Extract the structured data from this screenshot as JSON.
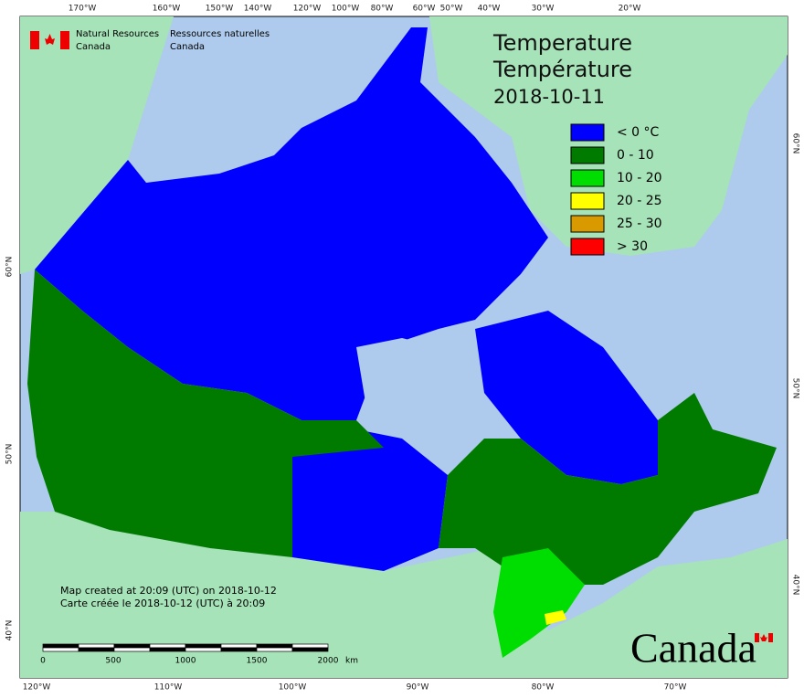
{
  "header": {
    "department_en": [
      "Natural Resources",
      "Canada"
    ],
    "department_fr": [
      "Ressources naturelles",
      "Canada"
    ]
  },
  "title": [
    "Temperature",
    "Température",
    "2018-10-11"
  ],
  "legend": [
    {
      "label": "< 0 °C",
      "color": "#0000ff"
    },
    {
      "label": "0 - 10",
      "color": "#007b00"
    },
    {
      "label": "10 - 20",
      "color": "#00dd00"
    },
    {
      "label": "20 - 25",
      "color": "#ffff00"
    },
    {
      "label": "25 - 30",
      "color": "#d99a00"
    },
    {
      "label": "> 30",
      "color": "#ff0000"
    }
  ],
  "graticule": {
    "top": [
      "170°W",
      "160°W",
      "150°W",
      "140°W",
      "120°W",
      "100°W",
      "80°W",
      "60°W",
      "50°W",
      "40°W",
      "30°W",
      "20°W"
    ],
    "bottom": [
      "120°W",
      "110°W",
      "100°W",
      "90°W",
      "80°W",
      "70°W"
    ],
    "left": [
      "60°N",
      "50°N",
      "40°N"
    ],
    "right": [
      "60°N",
      "50°N",
      "40°N"
    ]
  },
  "credits": [
    "Map created at 20:09 (UTC) on 2018-10-12",
    "Carte créée le 2018-10-12 (UTC) à 20:09"
  ],
  "scale_bar": [
    "0",
    "500",
    "1000",
    "1500",
    "2000",
    "km"
  ],
  "wordmark": "Canada"
}
